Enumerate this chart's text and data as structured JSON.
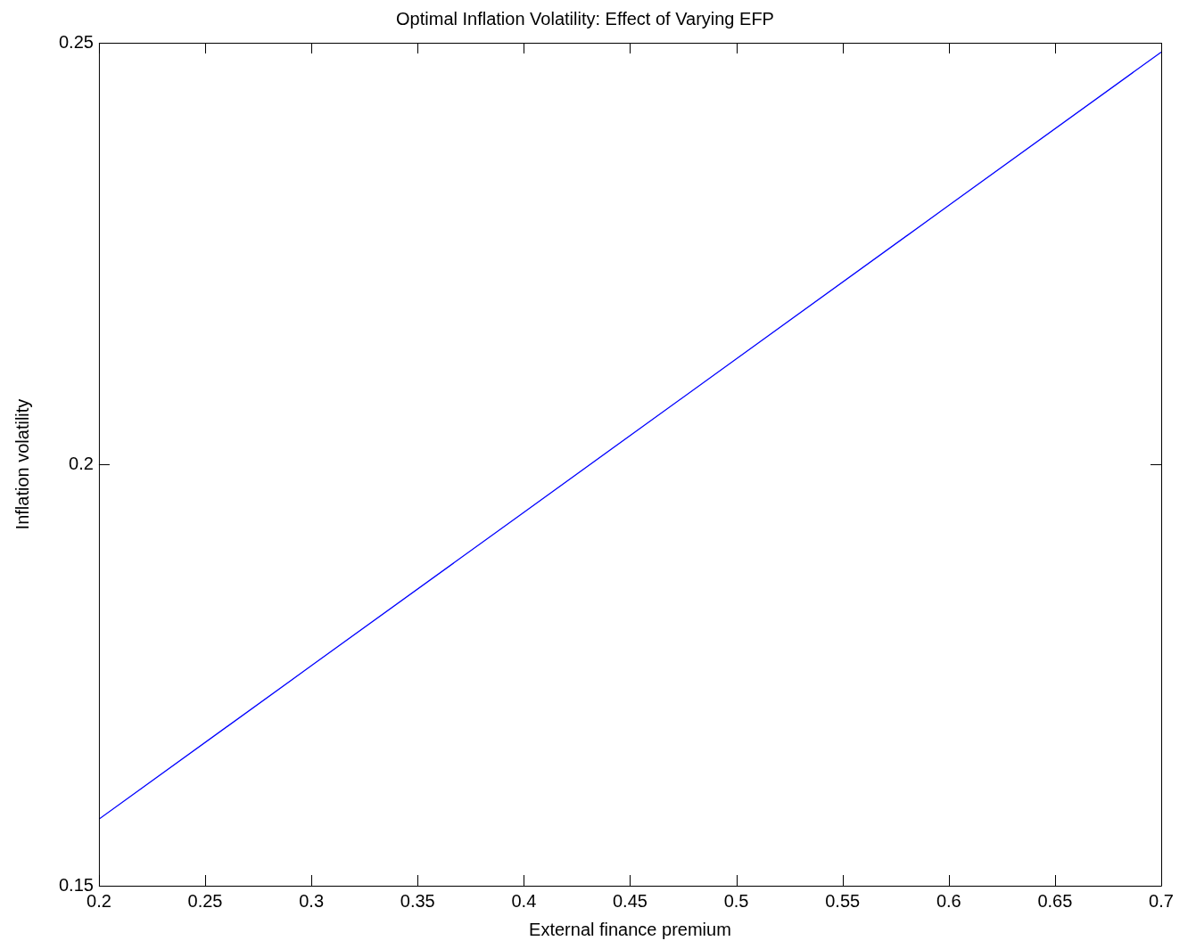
{
  "chart_data": {
    "type": "line",
    "title": "Optimal Inflation Volatility: Effect of Varying EFP",
    "xlabel": "External finance premium",
    "ylabel": "Inflation volatility",
    "x": [
      0.2,
      0.3,
      0.4,
      0.5,
      0.6,
      0.7
    ],
    "series": [
      {
        "color": "#0000ff",
        "values": [
          0.1579,
          0.1761,
          0.1943,
          0.2125,
          0.2307,
          0.2489
        ]
      }
    ],
    "xlim": [
      0.2,
      0.7
    ],
    "xticks": [
      0.2,
      0.25,
      0.3,
      0.35,
      0.4,
      0.45,
      0.5,
      0.55,
      0.6,
      0.65,
      0.7
    ],
    "ylim": [
      0.15,
      0.25
    ],
    "yticks": [
      0.15,
      0.2,
      0.25
    ],
    "grid": false,
    "legend": false,
    "marker": "none",
    "line_style": "solid"
  }
}
